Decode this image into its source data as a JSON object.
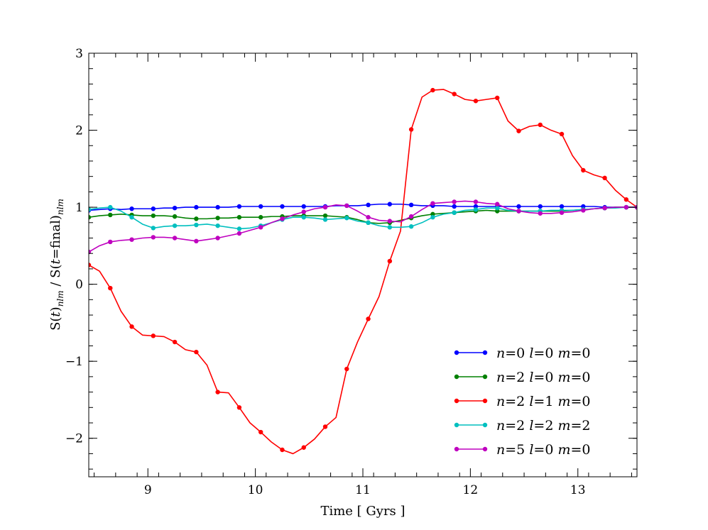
{
  "chart_data": {
    "type": "line",
    "title": "",
    "xlabel": "Time [ Gyrs ]",
    "ylabel_parts": {
      "pre": "S(",
      "t1": "t",
      "mid1": ")",
      "sub1": "nlm",
      "mid2": " / S(",
      "t2": "t",
      "mid3": "=final)",
      "sub2": "nlm"
    },
    "xlim": [
      8.45,
      13.55
    ],
    "ylim": [
      -2.5,
      3.0
    ],
    "xticks": [
      9,
      10,
      11,
      12,
      13
    ],
    "xtick_labels": [
      "9",
      "10",
      "11",
      "12",
      "13"
    ],
    "yticks": [
      -2,
      -1,
      0,
      1,
      2,
      3
    ],
    "ytick_labels": [
      "−2",
      "−1",
      "0",
      "1",
      "2",
      "3"
    ],
    "grid": false,
    "legend_position": "lower-right",
    "x": [
      8.45,
      8.55,
      8.65,
      8.75,
      8.85,
      8.95,
      9.05,
      9.15,
      9.25,
      9.35,
      9.45,
      9.55,
      9.65,
      9.75,
      9.85,
      9.95,
      10.05,
      10.15,
      10.25,
      10.35,
      10.45,
      10.55,
      10.65,
      10.75,
      10.85,
      10.95,
      11.05,
      11.15,
      11.25,
      11.35,
      11.45,
      11.55,
      11.65,
      11.75,
      11.85,
      11.95,
      12.05,
      12.15,
      12.25,
      12.35,
      12.45,
      12.55,
      12.65,
      12.75,
      12.85,
      12.95,
      13.05,
      13.15,
      13.25,
      13.35,
      13.45,
      13.55
    ],
    "series": [
      {
        "name": "n=0 l=0 m=0",
        "legend": {
          "n": "0",
          "l": "0",
          "m": "0"
        },
        "color": "#0000ff",
        "values": [
          0.96,
          0.97,
          0.98,
          0.97,
          0.98,
          0.98,
          0.98,
          0.99,
          0.99,
          1.0,
          1.0,
          1.0,
          1.0,
          1.0,
          1.01,
          1.01,
          1.01,
          1.01,
          1.01,
          1.01,
          1.01,
          1.01,
          1.01,
          1.02,
          1.02,
          1.02,
          1.03,
          1.04,
          1.04,
          1.04,
          1.03,
          1.02,
          1.02,
          1.02,
          1.01,
          1.01,
          1.01,
          1.01,
          1.01,
          1.01,
          1.01,
          1.01,
          1.01,
          1.01,
          1.01,
          1.01,
          1.01,
          1.01,
          1.0,
          1.0,
          1.0,
          1.0
        ]
      },
      {
        "name": "n=2 l=0 m=0",
        "legend": {
          "n": "2",
          "l": "0",
          "m": "0"
        },
        "color": "#008000",
        "values": [
          0.87,
          0.89,
          0.9,
          0.91,
          0.9,
          0.89,
          0.89,
          0.89,
          0.88,
          0.86,
          0.85,
          0.85,
          0.86,
          0.86,
          0.87,
          0.87,
          0.87,
          0.88,
          0.88,
          0.89,
          0.89,
          0.89,
          0.89,
          0.88,
          0.87,
          0.84,
          0.8,
          0.79,
          0.8,
          0.83,
          0.86,
          0.89,
          0.91,
          0.92,
          0.93,
          0.94,
          0.95,
          0.96,
          0.95,
          0.95,
          0.95,
          0.95,
          0.95,
          0.95,
          0.95,
          0.96,
          0.97,
          0.98,
          0.99,
          1.0,
          1.0,
          1.0
        ]
      },
      {
        "name": "n=2 l=1 m=0",
        "legend": {
          "n": "2",
          "l": "1",
          "m": "0"
        },
        "color": "#ff0000",
        "values": [
          0.25,
          0.17,
          -0.05,
          -0.35,
          -0.55,
          -0.66,
          -0.67,
          -0.68,
          -0.75,
          -0.85,
          -0.88,
          -1.05,
          -1.4,
          -1.41,
          -1.6,
          -1.8,
          -1.92,
          -2.05,
          -2.15,
          -2.2,
          -2.12,
          -2.01,
          -1.85,
          -1.73,
          -1.1,
          -0.75,
          -0.45,
          -0.16,
          0.3,
          0.69,
          2.01,
          2.43,
          2.52,
          2.53,
          2.47,
          2.4,
          2.38,
          2.4,
          2.42,
          2.12,
          1.99,
          2.05,
          2.07,
          2.0,
          1.95,
          1.67,
          1.48,
          1.42,
          1.38,
          1.22,
          1.1,
          1.0
        ]
      },
      {
        "name": "n=2 l=2 m=2",
        "legend": {
          "n": "2",
          "l": "2",
          "m": "2"
        },
        "color": "#00bfbf",
        "values": [
          0.97,
          0.99,
          1.0,
          0.95,
          0.87,
          0.78,
          0.73,
          0.75,
          0.76,
          0.76,
          0.77,
          0.78,
          0.76,
          0.74,
          0.72,
          0.73,
          0.76,
          0.8,
          0.84,
          0.87,
          0.87,
          0.86,
          0.84,
          0.85,
          0.86,
          0.82,
          0.8,
          0.76,
          0.74,
          0.74,
          0.75,
          0.8,
          0.87,
          0.91,
          0.93,
          0.96,
          0.97,
          0.99,
          0.99,
          0.96,
          0.95,
          0.95,
          0.95,
          0.96,
          0.96,
          0.96,
          0.97,
          0.98,
          0.99,
          0.99,
          1.0,
          1.0
        ]
      },
      {
        "name": "n=5 l=0 m=0",
        "legend": {
          "n": "5",
          "l": "0",
          "m": "0"
        },
        "color": "#bf00bf",
        "values": [
          0.42,
          0.5,
          0.55,
          0.57,
          0.58,
          0.6,
          0.61,
          0.61,
          0.6,
          0.58,
          0.56,
          0.58,
          0.6,
          0.63,
          0.66,
          0.7,
          0.74,
          0.8,
          0.85,
          0.9,
          0.94,
          0.98,
          1.0,
          1.03,
          1.02,
          0.95,
          0.87,
          0.83,
          0.82,
          0.81,
          0.88,
          0.97,
          1.05,
          1.06,
          1.07,
          1.08,
          1.07,
          1.05,
          1.04,
          0.98,
          0.95,
          0.93,
          0.92,
          0.92,
          0.93,
          0.94,
          0.96,
          0.98,
          0.99,
          1.0,
          1.0,
          1.0
        ]
      }
    ],
    "markers": [
      {
        "series": 0,
        "indices": [
          0,
          2,
          4,
          6,
          8,
          10,
          12,
          14,
          16,
          18,
          20,
          22,
          24,
          26,
          28,
          30,
          32,
          34,
          36,
          38,
          40,
          42,
          44,
          46,
          48,
          50,
          51
        ]
      },
      {
        "series": 1,
        "indices": [
          0,
          2,
          4,
          6,
          8,
          10,
          12,
          14,
          16,
          18,
          20,
          22,
          24,
          26,
          28,
          30,
          32,
          34,
          36,
          38,
          40,
          42,
          44,
          46,
          48,
          50,
          51
        ]
      },
      {
        "series": 2,
        "indices": [
          0,
          2,
          4,
          6,
          8,
          10,
          12,
          14,
          16,
          18,
          20,
          22,
          24,
          26,
          28,
          30,
          32,
          34,
          36,
          38,
          40,
          42,
          44,
          46,
          48,
          50,
          51
        ]
      },
      {
        "series": 3,
        "indices": [
          0,
          2,
          4,
          6,
          8,
          10,
          12,
          14,
          16,
          18,
          20,
          22,
          24,
          26,
          28,
          30,
          32,
          34,
          36,
          38,
          40,
          42,
          44,
          46,
          48,
          50,
          51
        ]
      },
      {
        "series": 4,
        "indices": [
          0,
          2,
          4,
          6,
          8,
          10,
          12,
          14,
          16,
          18,
          20,
          22,
          24,
          26,
          28,
          30,
          32,
          34,
          36,
          38,
          40,
          42,
          44,
          46,
          48,
          50,
          51
        ]
      }
    ]
  }
}
